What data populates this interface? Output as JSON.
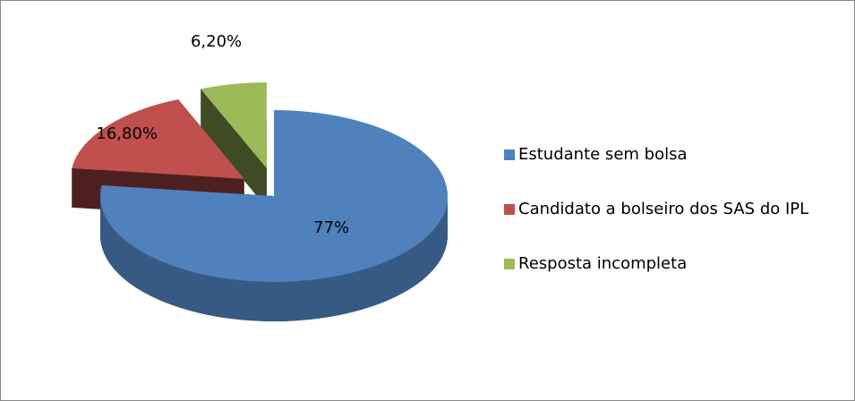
{
  "chart_data": {
    "type": "pie",
    "categories": [
      "Estudante sem bolsa",
      "Candidato a bolseiro dos SAS do IPL",
      "Resposta incompleta"
    ],
    "values": [
      77,
      16.8,
      6.2
    ],
    "value_labels": [
      "77%",
      "16,80%",
      "6,20%"
    ],
    "colors": [
      "#4f81bd",
      "#c0504d",
      "#9bbb59"
    ],
    "legend": "right"
  }
}
